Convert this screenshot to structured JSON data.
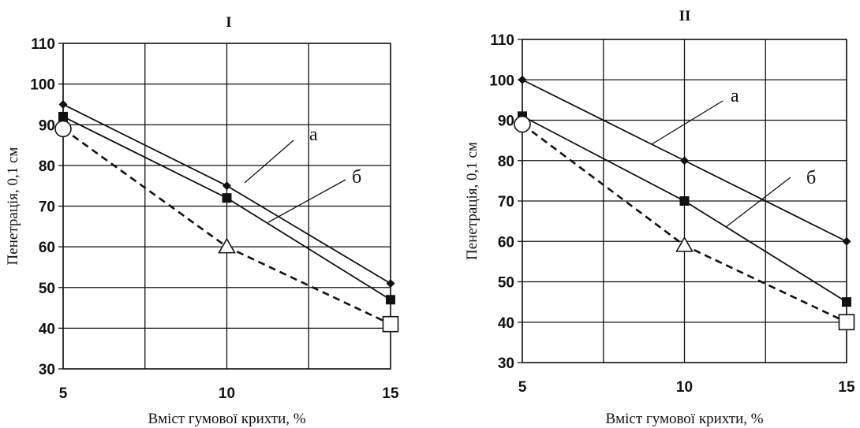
{
  "chart_data": [
    {
      "type": "line",
      "title": "I",
      "xlabel": "Вміст гумової крихти, %",
      "ylabel": "Пенетрація, 0,1 см",
      "x": [
        5,
        10,
        15
      ],
      "x_ticks": [
        5,
        10,
        15
      ],
      "xlim": [
        5,
        15
      ],
      "ylim": [
        30,
        110
      ],
      "y_ticks": [
        30,
        40,
        50,
        60,
        70,
        80,
        90,
        100,
        110
      ],
      "grid": true,
      "series": [
        {
          "label": "а",
          "marker": "diamond",
          "style": "solid",
          "color": "#111111",
          "values": [
            95,
            75,
            51
          ]
        },
        {
          "label": "б",
          "marker": "square",
          "style": "solid",
          "color": "#111111",
          "values": [
            92,
            72,
            47
          ]
        },
        {
          "marker": "open-shapes",
          "style": "dashed",
          "color": "#111111",
          "values": [
            89,
            60,
            41
          ]
        }
      ]
    },
    {
      "type": "line",
      "title": "II",
      "xlabel": "Вміст гумової крихти, %",
      "ylabel": "Пенетрація, 0,1 см",
      "x": [
        5,
        10,
        15
      ],
      "x_ticks": [
        5,
        10,
        15
      ],
      "xlim": [
        5,
        15
      ],
      "ylim": [
        30,
        110
      ],
      "y_ticks": [
        30,
        40,
        50,
        60,
        70,
        80,
        90,
        100,
        110
      ],
      "grid": true,
      "series": [
        {
          "label": "а",
          "marker": "diamond",
          "style": "solid",
          "color": "#111111",
          "values": [
            100,
            80,
            60
          ]
        },
        {
          "label": "б",
          "marker": "square",
          "style": "solid",
          "color": "#111111",
          "values": [
            91,
            70,
            45
          ]
        },
        {
          "marker": "open-shapes",
          "style": "dashed",
          "color": "#111111",
          "values": [
            89,
            59,
            40
          ]
        }
      ]
    }
  ]
}
